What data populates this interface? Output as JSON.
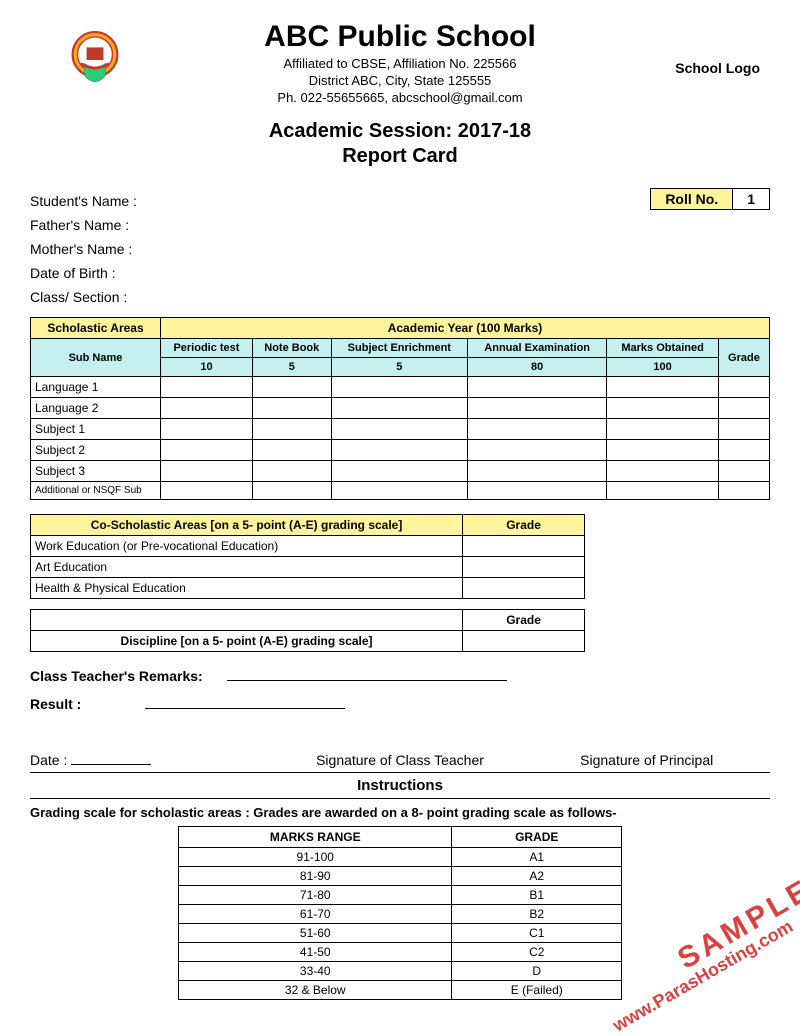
{
  "header": {
    "school_name": "ABC Public School",
    "affiliation_line1": "Affiliated to CBSE, Affiliation No. 225566",
    "affiliation_line2": "District ABC, City, State  125555",
    "affiliation_line3": "Ph. 022-55655665, abcschool@gmail.com",
    "school_logo_label": "School Logo",
    "session_title": "Academic Session: 2017-18",
    "report_card_title": "Report Card"
  },
  "student_info": {
    "labels": {
      "student_name": "Student's Name :",
      "father_name": "Father's Name :",
      "mother_name": "Mother's Name :",
      "dob": "Date of Birth :",
      "class_section": "Class/ Section :",
      "roll_no": "Roll No.",
      "roll_value": "1"
    }
  },
  "scholastic": {
    "areas_header": "Scholastic Areas",
    "year_header": "Academic Year (100 Marks)",
    "sub_name_header": "Sub Name",
    "columns": [
      "Periodic test",
      "Note Book",
      "Subject Enrichment",
      "Annual Examination",
      "Marks Obtained",
      "Grade"
    ],
    "max_marks": [
      "10",
      "5",
      "5",
      "80",
      "100"
    ],
    "subjects": [
      "Language 1",
      "Language 2",
      "Subject 1",
      "Subject 2",
      "Subject 3",
      "Additional or NSQF Sub"
    ],
    "colors": {
      "yellow": "#fff49c",
      "cyan": "#c4f0f0"
    }
  },
  "co_scholastic": {
    "header": "Co-Scholastic Areas [on a 5- point (A-E) grading scale]",
    "grade_header": "Grade",
    "rows": [
      "Work Education (or Pre-vocational Education)",
      "Art Education",
      "Health & Physical Education"
    ]
  },
  "discipline": {
    "header": "Discipline [on a 5- point (A-E) grading scale]",
    "grade_header": "Grade"
  },
  "remarks_label": "Class Teacher's Remarks:",
  "result_label": "Result :",
  "signatures": {
    "date": "Date :",
    "teacher": "Signature of Class Teacher",
    "principal": "Signature of Principal"
  },
  "instructions": {
    "title": "Instructions",
    "grading_text": "Grading scale for scholastic areas : Grades are awarded on a 8- point grading scale as follows-",
    "table": {
      "columns": [
        "MARKS RANGE",
        "GRADE"
      ],
      "rows": [
        [
          "91-100",
          "A1"
        ],
        [
          "81-90",
          "A2"
        ],
        [
          "71-80",
          "B1"
        ],
        [
          "61-70",
          "B2"
        ],
        [
          "51-60",
          "C1"
        ],
        [
          "41-50",
          "C2"
        ],
        [
          "33-40",
          "D"
        ],
        [
          "32 & Below",
          "E (Failed)"
        ]
      ]
    }
  },
  "watermark": {
    "line1": "SAMPLE",
    "line2": "www.ParasHosting.com"
  }
}
